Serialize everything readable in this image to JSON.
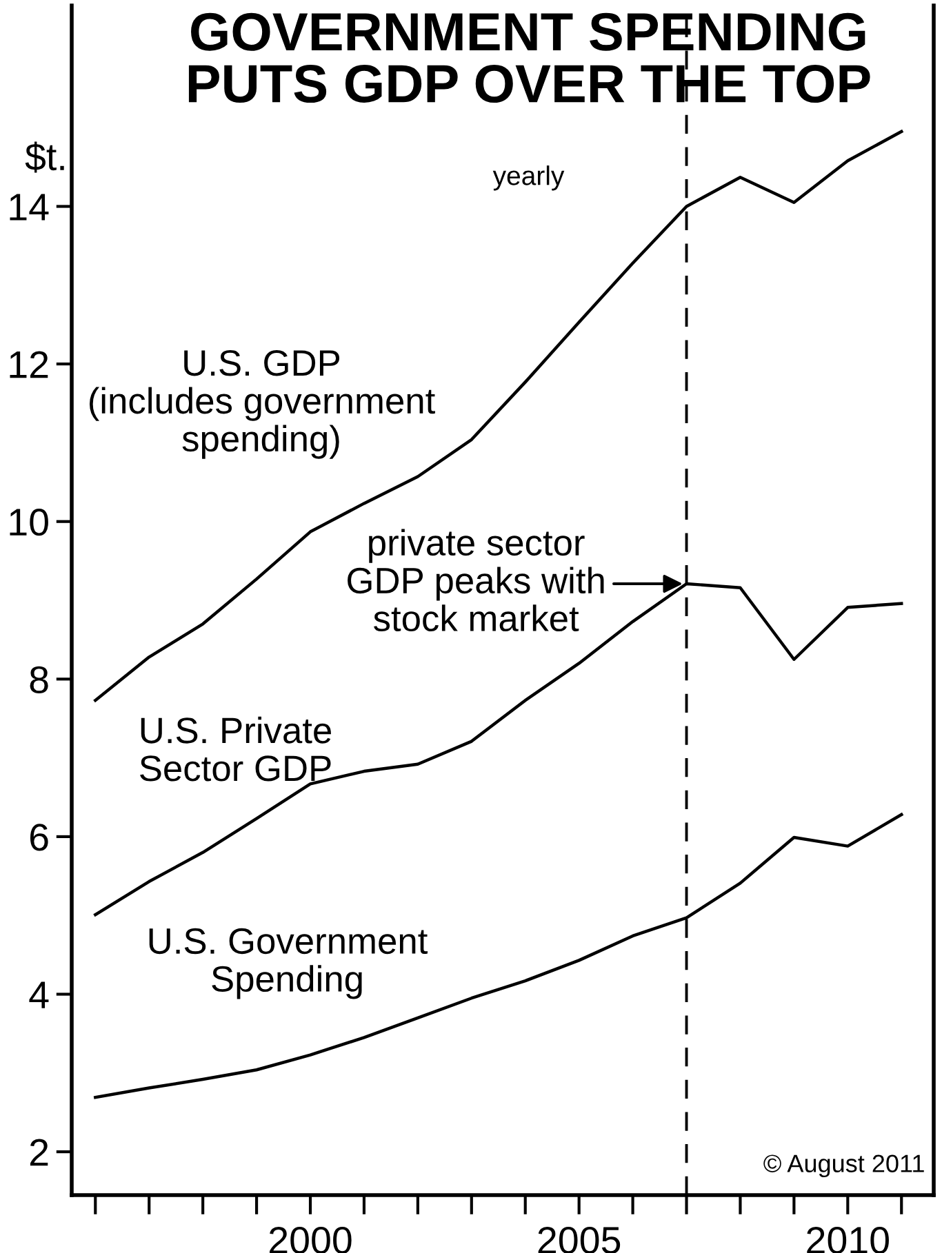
{
  "chart_data": {
    "type": "line",
    "title": "GOVERNMENT SPENDING\nPUTS GDP OVER THE TOP",
    "subtitle": "yearly",
    "ylabel": "$t.",
    "x": [
      1996,
      1997,
      1998,
      1999,
      2000,
      2001,
      2002,
      2003,
      2004,
      2005,
      2006,
      2007,
      2008,
      2009,
      2010,
      2011
    ],
    "series": [
      {
        "name": "U.S. GDP\n(includes government\nspending)",
        "color": "#000000",
        "values": [
          7.73,
          8.28,
          8.7,
          9.27,
          9.87,
          10.23,
          10.57,
          11.04,
          11.77,
          12.53,
          13.28,
          14.0,
          14.37,
          14.05,
          14.58,
          14.95
        ]
      },
      {
        "name": "U.S. Private\nSector GDP",
        "color": "#000000",
        "values": [
          5.01,
          5.43,
          5.8,
          6.23,
          6.67,
          6.83,
          6.92,
          7.21,
          7.73,
          8.2,
          8.73,
          9.21,
          9.16,
          8.25,
          8.91,
          8.96
        ]
      },
      {
        "name": "U.S. Government\nSpending",
        "color": "#000000",
        "values": [
          2.69,
          2.81,
          2.92,
          3.04,
          3.23,
          3.45,
          3.7,
          3.95,
          4.17,
          4.43,
          4.74,
          4.97,
          5.41,
          5.99,
          5.88,
          6.28
        ]
      }
    ],
    "xlim": [
      1995.56,
      2011.6
    ],
    "xticks": [
      {
        "value": 1996,
        "label": null
      },
      {
        "value": 1997,
        "label": null
      },
      {
        "value": 1998,
        "label": null
      },
      {
        "value": 1999,
        "label": null
      },
      2000,
      {
        "value": 2001,
        "label": null
      },
      {
        "value": 2002,
        "label": null
      },
      {
        "value": 2003,
        "label": null
      },
      {
        "value": 2004,
        "label": null
      },
      2005,
      {
        "value": 2006,
        "label": null
      },
      {
        "value": 2007,
        "label": null
      },
      {
        "value": 2008,
        "label": null
      },
      {
        "value": 2009,
        "label": null
      },
      2010,
      {
        "value": 2011,
        "label": null
      }
    ],
    "ylim": [
      1.45,
      16.55
    ],
    "yticks": [
      2,
      4,
      6,
      8,
      10,
      12,
      14
    ],
    "ref_lines": [
      {
        "axis": "x",
        "value": 2007,
        "color": "#000000",
        "line_style": "dashed"
      }
    ],
    "annotations": [
      {
        "text": "private sector\nGDP peaks with\nstock market",
        "x": 2007,
        "y": 9.21
      },
      "© August 2011"
    ],
    "grid": false,
    "legend": false,
    "marker": "none",
    "line_style": "solid"
  }
}
